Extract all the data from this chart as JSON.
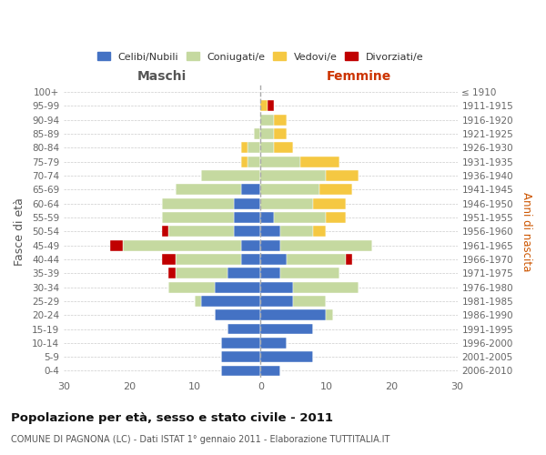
{
  "age_groups": [
    "0-4",
    "5-9",
    "10-14",
    "15-19",
    "20-24",
    "25-29",
    "30-34",
    "35-39",
    "40-44",
    "45-49",
    "50-54",
    "55-59",
    "60-64",
    "65-69",
    "70-74",
    "75-79",
    "80-84",
    "85-89",
    "90-94",
    "95-99",
    "100+"
  ],
  "birth_years": [
    "2006-2010",
    "2001-2005",
    "1996-2000",
    "1991-1995",
    "1986-1990",
    "1981-1985",
    "1976-1980",
    "1971-1975",
    "1966-1970",
    "1961-1965",
    "1956-1960",
    "1951-1955",
    "1946-1950",
    "1941-1945",
    "1936-1940",
    "1931-1935",
    "1926-1930",
    "1921-1925",
    "1916-1920",
    "1911-1915",
    "≤ 1910"
  ],
  "male": {
    "celibi": [
      6,
      6,
      6,
      5,
      7,
      9,
      7,
      5,
      3,
      3,
      4,
      4,
      4,
      3,
      0,
      0,
      0,
      0,
      0,
      0,
      0
    ],
    "coniugati": [
      0,
      0,
      0,
      0,
      0,
      1,
      7,
      8,
      10,
      18,
      10,
      11,
      11,
      10,
      9,
      2,
      2,
      1,
      0,
      0,
      0
    ],
    "vedovi": [
      0,
      0,
      0,
      0,
      0,
      0,
      0,
      0,
      0,
      0,
      0,
      0,
      0,
      0,
      0,
      1,
      1,
      0,
      0,
      0,
      0
    ],
    "divorziati": [
      0,
      0,
      0,
      0,
      0,
      0,
      0,
      1,
      2,
      2,
      1,
      0,
      0,
      0,
      0,
      0,
      0,
      0,
      0,
      0,
      0
    ]
  },
  "female": {
    "nubili": [
      3,
      8,
      4,
      8,
      10,
      5,
      5,
      3,
      4,
      3,
      3,
      2,
      0,
      0,
      0,
      0,
      0,
      0,
      0,
      0,
      0
    ],
    "coniugate": [
      0,
      0,
      0,
      0,
      1,
      5,
      10,
      9,
      9,
      14,
      5,
      8,
      8,
      9,
      10,
      6,
      2,
      2,
      2,
      0,
      0
    ],
    "vedove": [
      0,
      0,
      0,
      0,
      0,
      0,
      0,
      0,
      0,
      0,
      2,
      3,
      5,
      5,
      5,
      6,
      3,
      2,
      2,
      1,
      0
    ],
    "divorziate": [
      0,
      0,
      0,
      0,
      0,
      0,
      0,
      0,
      1,
      0,
      0,
      0,
      0,
      0,
      0,
      0,
      0,
      0,
      0,
      1,
      0
    ]
  },
  "colors": {
    "celibi_nubili": "#4472C4",
    "coniugati": "#c5d9a0",
    "vedovi": "#f5c842",
    "divorziati": "#c00000"
  },
  "xlim": 30,
  "title": "Popolazione per età, sesso e stato civile - 2011",
  "subtitle": "COMUNE DI PAGNONA (LC) - Dati ISTAT 1° gennaio 2011 - Elaborazione TUTTITALIA.IT",
  "ylabel_left": "Fasce di età",
  "ylabel_right": "Anni di nascita",
  "xlabel_left": "Maschi",
  "xlabel_right": "Femmine",
  "legend_labels": [
    "Celibi/Nubili",
    "Coniugati/e",
    "Vedovi/e",
    "Divorziati/e"
  ],
  "background_color": "#ffffff"
}
